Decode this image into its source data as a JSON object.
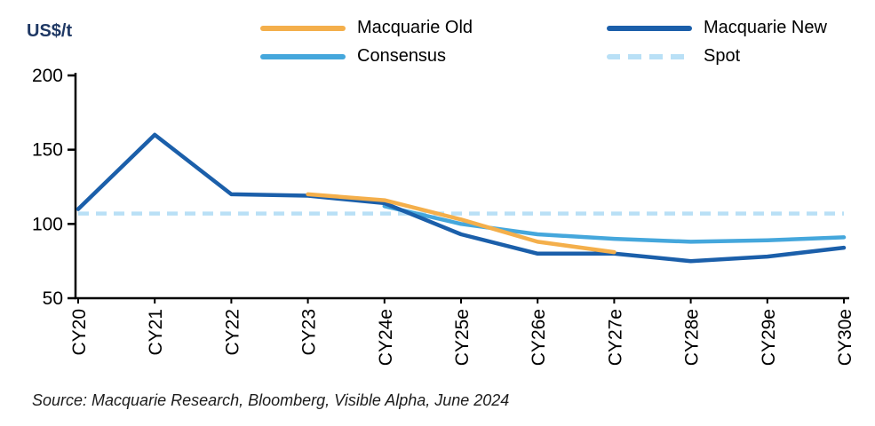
{
  "source": "Source: Macquarie Research, Bloomberg, Visible Alpha, June 2024",
  "legend": [
    {
      "label": "Macquarie Old",
      "color": "#F4AF4B",
      "dashed": false
    },
    {
      "label": "Macquarie New",
      "color": "#1B5FAA",
      "dashed": false
    },
    {
      "label": "Consensus",
      "color": "#45A7DC",
      "dashed": false
    },
    {
      "label": "Spot",
      "color": "#B9E0F6",
      "dashed": true
    }
  ],
  "chart_data": {
    "type": "line",
    "title": "",
    "ylabel": "US$/t",
    "xlabel": "",
    "ylim": [
      50,
      200
    ],
    "yticks": [
      50,
      100,
      150,
      200
    ],
    "grid": false,
    "legend_position": "top",
    "categories": [
      "CY20",
      "CY21",
      "CY22",
      "CY23",
      "CY24e",
      "CY25e",
      "CY26e",
      "CY27e",
      "CY28e",
      "CY29e",
      "CY30e"
    ],
    "series": [
      {
        "name": "Macquarie Old",
        "color": "#F4AF4B",
        "style": "solid",
        "values": [
          null,
          null,
          null,
          120,
          116,
          103,
          88,
          81,
          null,
          null,
          null
        ]
      },
      {
        "name": "Macquarie New",
        "color": "#1B5FAA",
        "style": "solid",
        "values": [
          110,
          160,
          120,
          119,
          114,
          93,
          80,
          80,
          75,
          78,
          84
        ]
      },
      {
        "name": "Consensus",
        "color": "#45A7DC",
        "style": "solid",
        "values": [
          null,
          null,
          null,
          null,
          112,
          100,
          93,
          90,
          88,
          89,
          91
        ]
      },
      {
        "name": "Spot",
        "color": "#B9E0F6",
        "style": "dashed",
        "values": [
          107,
          107,
          107,
          107,
          107,
          107,
          107,
          107,
          107,
          107,
          107
        ]
      }
    ]
  }
}
